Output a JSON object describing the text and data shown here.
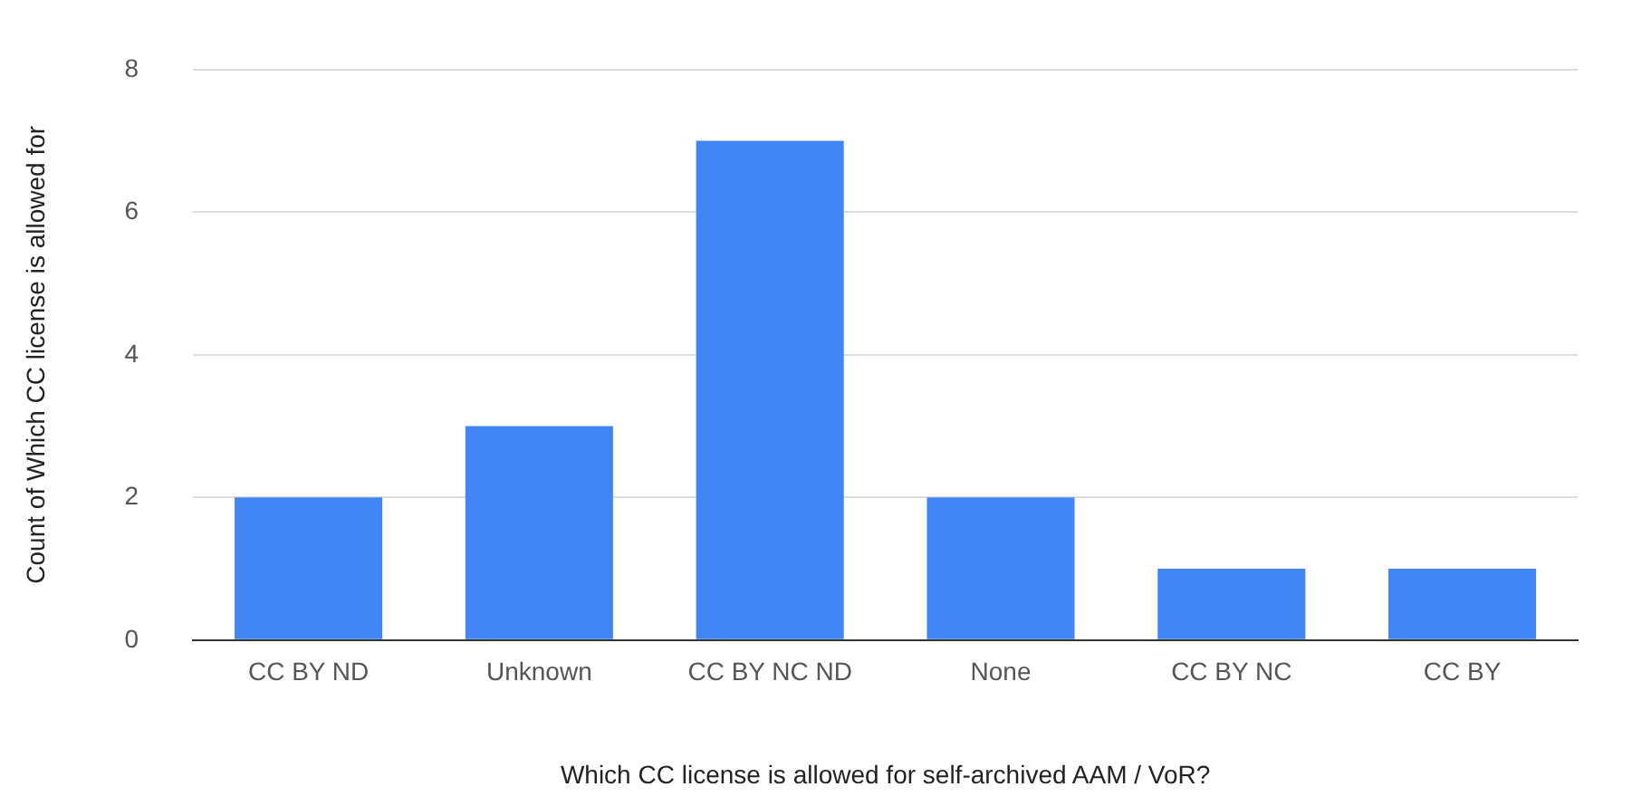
{
  "chart_data": {
    "type": "bar",
    "xlabel": "Which CC license is allowed for self-archived AAM / VoR?",
    "ylabel": "Count of Which CC license is allowed for",
    "categories": [
      "CC BY ND",
      "Unknown",
      "CC BY NC ND",
      "None",
      "CC BY NC",
      "CC BY"
    ],
    "values": [
      2,
      3,
      7,
      2,
      1,
      1
    ],
    "color": "#4285f4",
    "ylim": [
      0,
      8
    ],
    "yticks": [
      0,
      2,
      4,
      6,
      8
    ],
    "grid": "y",
    "legend": false
  }
}
